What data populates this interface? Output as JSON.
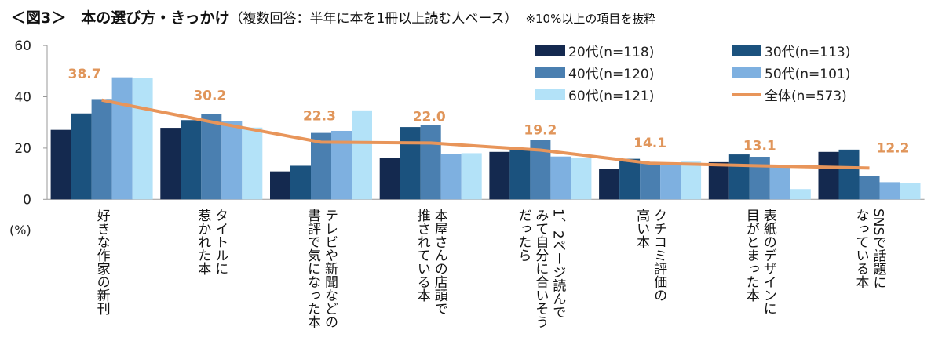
{
  "title": {
    "main": "＜図3＞　本の選び方・きっかけ",
    "sub": "（複数回答：半年に本を1冊以上読む人ベース）",
    "note": "※10%以上の項目を抜粋"
  },
  "chart_data": {
    "type": "bar",
    "ylabel": "(%)",
    "ylim": [
      0,
      60
    ],
    "yticks": [
      "0",
      "20",
      "40",
      "60"
    ],
    "legend_position": "top-right",
    "categories": [
      "好きな作家の新刊",
      "タイトルに\n惹かれた本",
      "テレビや新聞などの\n書評で気になった本",
      "本屋さんの店頭で\n推されている本",
      "1、2ページ読んで\nみて自分に合いそう\nだったら",
      "クチコミ評価の\n高い本",
      "表紙のデザインに\n目がとまった本",
      "SNSで話題に\nなっている本"
    ],
    "series": [
      {
        "name": "20代(n=118)",
        "color": "#14294f",
        "values": [
          27.1,
          27.9,
          10.9,
          16.0,
          18.5,
          11.8,
          14.5,
          18.5
        ]
      },
      {
        "name": "30代(n=113)",
        "color": "#1b527e",
        "values": [
          33.5,
          30.9,
          13.1,
          28.2,
          19.7,
          15.8,
          17.5,
          19.4
        ]
      },
      {
        "name": "40代(n=120)",
        "color": "#4a7fb0",
        "values": [
          39.1,
          33.3,
          25.9,
          29.0,
          23.3,
          14.1,
          16.6,
          9.0
        ]
      },
      {
        "name": "50代(n=101)",
        "color": "#7eb0e0",
        "values": [
          47.6,
          30.6,
          26.7,
          17.6,
          16.7,
          14.1,
          12.5,
          6.7
        ]
      },
      {
        "name": "60代(n=121)",
        "color": "#b3e2f8",
        "values": [
          47.2,
          28.0,
          34.7,
          18.0,
          16.3,
          14.7,
          4.0,
          6.5
        ]
      }
    ],
    "line": {
      "name": "全体(n=573)",
      "color": "#e8955a",
      "values": [
        38.7,
        30.2,
        22.3,
        22.0,
        19.2,
        14.1,
        13.1,
        12.2
      ],
      "labels": [
        "38.7",
        "30.2",
        "22.3",
        "22.0",
        "19.2",
        "14.1",
        "13.1",
        "12.2"
      ]
    }
  }
}
